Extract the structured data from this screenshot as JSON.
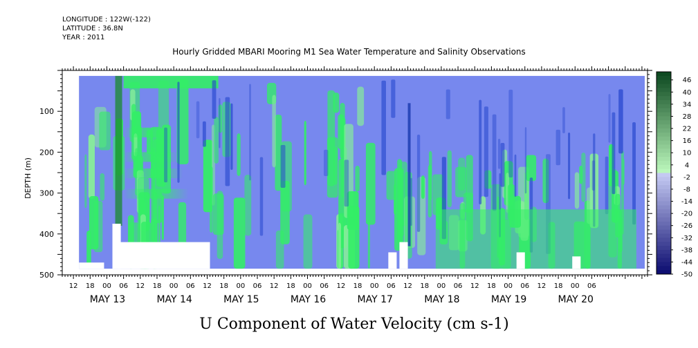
{
  "header": {
    "longitude": "LONGITUDE : 122W(-122)",
    "latitude": "LATITUDE : 36.8N",
    "year": "YEAR : 2011",
    "title": "Hourly Gridded MBARI Mooring M1 Sea Water Temperature and Salinity Observations"
  },
  "chart_data": {
    "type": "heatmap",
    "title": "U Component of Water Velocity (cm s-1)",
    "xlabel": "",
    "ylabel": "DEPTH (m)",
    "x_unit": "hours",
    "x_range_hours": [
      -16,
      194
    ],
    "y_range": [
      10,
      500
    ],
    "y_inverted": true,
    "y_ticks": [
      100,
      200,
      300,
      400,
      500
    ],
    "x_tick_hour_labels": [
      "12",
      "18",
      "00",
      "06",
      "12",
      "18",
      "00",
      "06",
      "12",
      "18",
      "00",
      "06",
      "12",
      "18",
      "00",
      "06",
      "12",
      "18",
      "00",
      "06",
      "12",
      "18",
      "00",
      "06",
      "12",
      "18",
      "00",
      "06",
      "12",
      "18",
      "00",
      "06"
    ],
    "x_date_labels": [
      "MAY 13",
      "MAY 14",
      "MAY 15",
      "MAY 16",
      "MAY 17",
      "MAY 18",
      "MAY 19",
      "MAY 20"
    ],
    "colorbar_levels": [
      46,
      40,
      34,
      28,
      22,
      16,
      10,
      4,
      -2,
      -8,
      -14,
      -20,
      -26,
      -32,
      -38,
      -44,
      -50
    ],
    "colorbar_range": [
      -50,
      50
    ],
    "colorbar_interval": 2,
    "dominant_pattern": "Mostly weak negative (-2 to -14) with positive (4 to 16) patches, stronger positive near the bottom after May 17",
    "colors": {
      "positive": "#33ee66",
      "negative": "#7788ee",
      "strong_negative": "#2244cc",
      "strong_positive": "#1a8a2e"
    }
  }
}
